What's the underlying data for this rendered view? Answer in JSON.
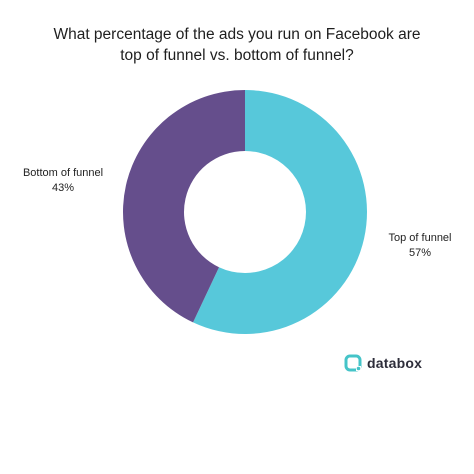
{
  "chart_data": {
    "type": "pie",
    "title_lines": [
      "What percentage of the ads you run on Facebook are",
      "top of funnel vs. bottom of funnel?"
    ],
    "slices": [
      {
        "label": "Top of funnel",
        "value": 57,
        "value_text": "57%",
        "color": "#57c8da"
      },
      {
        "label": "Bottom of funnel",
        "value": 43,
        "value_text": "43%",
        "color": "#654e8c"
      }
    ],
    "style": "donut",
    "legend": "none"
  },
  "brand": {
    "name": "databox",
    "icon": "databox-logo-icon",
    "color": "#45c4c8"
  }
}
